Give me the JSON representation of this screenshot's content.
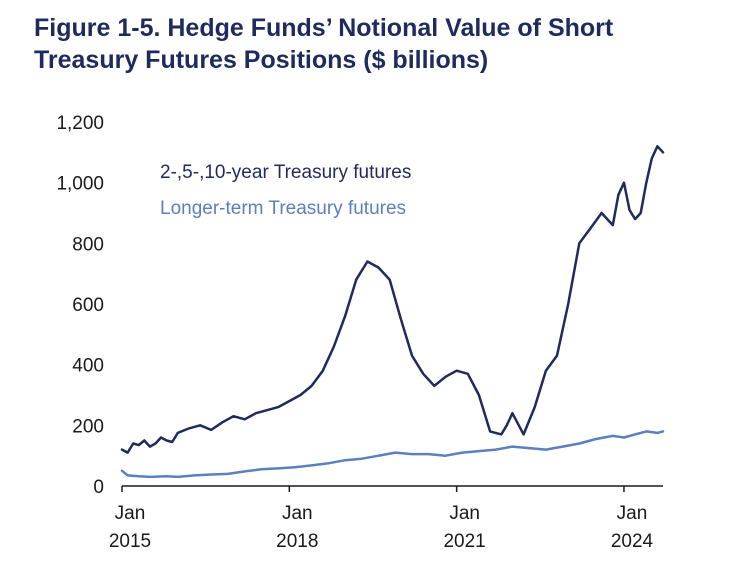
{
  "figure": {
    "title_line1": "Figure 1-5. Hedge Funds’ Notional Value of Short",
    "title_line2": "Treasury Futures Positions ($ billions)"
  },
  "chart_data": {
    "type": "line",
    "title": "Figure 1-5. Hedge Funds’ Notional Value of Short Treasury Futures Positions ($ billions)",
    "xlabel": "",
    "ylabel": "",
    "xlim": [
      2015.0,
      2024.7
    ],
    "ylim": [
      0,
      1200
    ],
    "yticks": [
      0,
      200,
      400,
      600,
      800,
      1000,
      1200
    ],
    "ytick_labels": [
      "0",
      "200",
      "400",
      "600",
      "800",
      "1,000",
      "1,200"
    ],
    "xticks": [
      {
        "value": 2015,
        "label1": "Jan",
        "label2": "2015"
      },
      {
        "value": 2018,
        "label1": "Jan",
        "label2": "2018"
      },
      {
        "value": 2021,
        "label1": "Jan",
        "label2": "2021"
      },
      {
        "value": 2024,
        "label1": "Jan",
        "label2": "2024"
      }
    ],
    "grid": false,
    "legend_position": "top-left",
    "series": [
      {
        "name": "2-,5-,10-year Treasury futures",
        "color": "#1f2a5e",
        "x": [
          2015.0,
          2015.1,
          2015.2,
          2015.3,
          2015.4,
          2015.5,
          2015.6,
          2015.7,
          2015.8,
          2015.9,
          2016.0,
          2016.2,
          2016.4,
          2016.6,
          2016.8,
          2017.0,
          2017.2,
          2017.4,
          2017.6,
          2017.8,
          2018.0,
          2018.2,
          2018.4,
          2018.6,
          2018.8,
          2019.0,
          2019.2,
          2019.4,
          2019.6,
          2019.8,
          2020.0,
          2020.2,
          2020.4,
          2020.6,
          2020.8,
          2021.0,
          2021.2,
          2021.4,
          2021.6,
          2021.8,
          2021.9,
          2022.0,
          2022.2,
          2022.4,
          2022.6,
          2022.8,
          2023.0,
          2023.2,
          2023.4,
          2023.6,
          2023.8,
          2023.9,
          2024.0,
          2024.1,
          2024.2,
          2024.3,
          2024.4,
          2024.5,
          2024.6,
          2024.7
        ],
        "values": [
          120,
          110,
          140,
          135,
          150,
          130,
          140,
          160,
          150,
          145,
          175,
          190,
          200,
          185,
          210,
          230,
          220,
          240,
          250,
          260,
          280,
          300,
          330,
          380,
          460,
          560,
          680,
          740,
          720,
          680,
          550,
          430,
          370,
          330,
          360,
          380,
          370,
          300,
          180,
          170,
          200,
          240,
          170,
          260,
          380,
          430,
          600,
          800,
          850,
          900,
          860,
          960,
          1000,
          910,
          880,
          900,
          1000,
          1080,
          1120,
          1100
        ]
      },
      {
        "name": "Longer-term Treasury futures",
        "color": "#5b7fbf",
        "x": [
          2015.0,
          2015.1,
          2015.3,
          2015.5,
          2015.8,
          2016.0,
          2016.3,
          2016.6,
          2016.9,
          2017.2,
          2017.5,
          2017.8,
          2018.1,
          2018.4,
          2018.7,
          2019.0,
          2019.3,
          2019.6,
          2019.9,
          2020.2,
          2020.5,
          2020.8,
          2021.1,
          2021.4,
          2021.7,
          2022.0,
          2022.3,
          2022.6,
          2022.9,
          2023.2,
          2023.5,
          2023.8,
          2024.0,
          2024.2,
          2024.4,
          2024.6,
          2024.7
        ],
        "values": [
          50,
          35,
          32,
          30,
          32,
          30,
          35,
          38,
          40,
          48,
          55,
          58,
          62,
          68,
          75,
          85,
          90,
          100,
          110,
          105,
          105,
          100,
          110,
          115,
          120,
          130,
          125,
          120,
          130,
          140,
          155,
          165,
          160,
          170,
          180,
          175,
          180
        ]
      }
    ]
  }
}
